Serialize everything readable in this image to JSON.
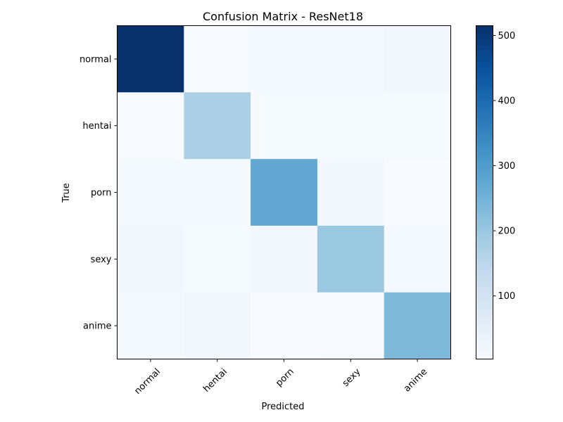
{
  "chart_data": {
    "type": "heatmap",
    "title": "Confusion Matrix - ResNet18",
    "xlabel": "Predicted",
    "ylabel": "True",
    "x_categories": [
      "normal",
      "hentai",
      "porn",
      "sexy",
      "anime"
    ],
    "y_categories": [
      "normal",
      "hentai",
      "porn",
      "sexy",
      "anime"
    ],
    "values": [
      [
        515,
        3,
        12,
        12,
        18
      ],
      [
        2,
        175,
        7,
        5,
        8
      ],
      [
        10,
        10,
        275,
        15,
        4
      ],
      [
        20,
        5,
        15,
        200,
        10
      ],
      [
        10,
        18,
        3,
        6,
        235
      ]
    ],
    "colormap": "Blues",
    "vmin": 3,
    "vmax": 515,
    "colorbar_ticks": [
      "100",
      "200",
      "300",
      "400",
      "500"
    ]
  }
}
